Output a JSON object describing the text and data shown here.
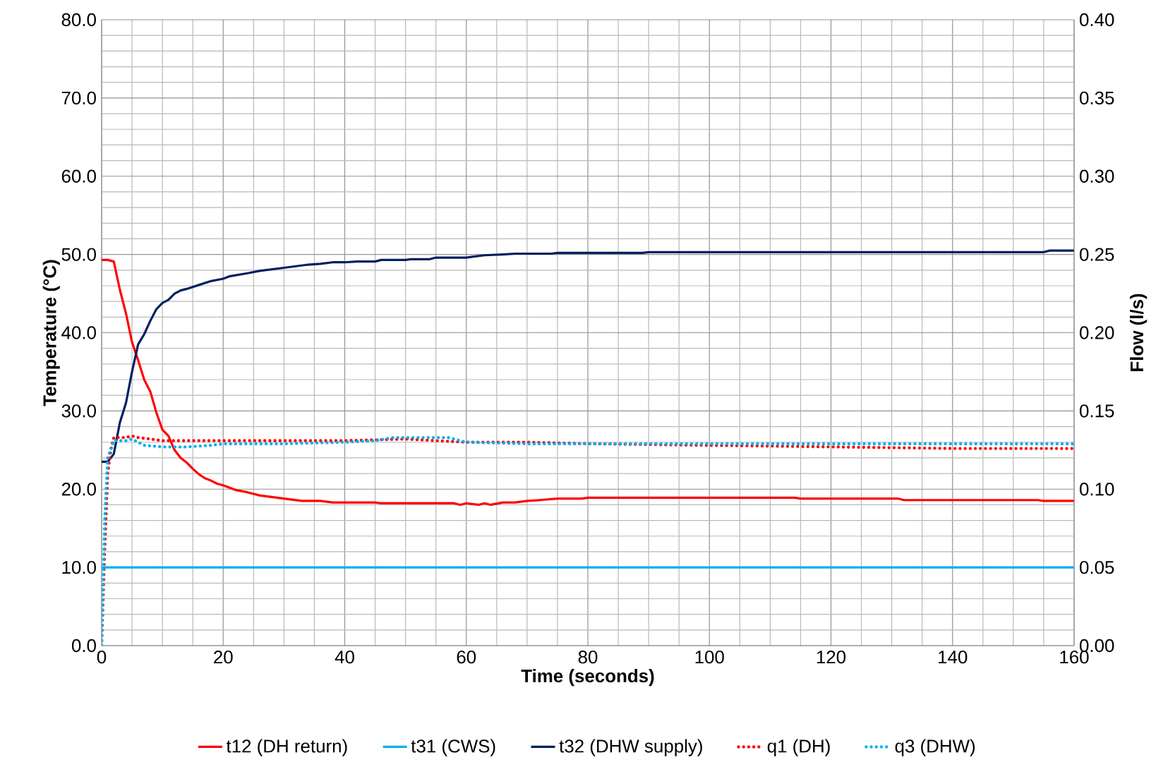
{
  "chart_data": {
    "type": "line",
    "xlabel": "Time (seconds)",
    "ylabel": "Temperature (°C)",
    "y2label": "Flow (l/s)",
    "xlim": [
      0,
      160
    ],
    "xticks": [
      0,
      20,
      40,
      60,
      80,
      100,
      120,
      140,
      160
    ],
    "ylim": [
      0,
      80
    ],
    "yticks": [
      {
        "value": 0,
        "label": "0.0"
      },
      {
        "value": 10,
        "label": "10.0"
      },
      {
        "value": 20,
        "label": "20.0"
      },
      {
        "value": 30,
        "label": "30.0"
      },
      {
        "value": 40,
        "label": "40.0"
      },
      {
        "value": 50,
        "label": "50.0"
      },
      {
        "value": 60,
        "label": "60.0"
      },
      {
        "value": 70,
        "label": "70.0"
      },
      {
        "value": 80,
        "label": "80.0"
      }
    ],
    "y2lim": [
      0,
      0.4
    ],
    "y2ticks": [
      {
        "value": 0,
        "label": "0.00"
      },
      {
        "value": 0.05,
        "label": "0.05"
      },
      {
        "value": 0.1,
        "label": "0.10"
      },
      {
        "value": 0.15,
        "label": "0.15"
      },
      {
        "value": 0.2,
        "label": "0.20"
      },
      {
        "value": 0.25,
        "label": "0.25"
      },
      {
        "value": 0.3,
        "label": "0.30"
      },
      {
        "value": 0.35,
        "label": "0.35"
      },
      {
        "value": 0.4,
        "label": "0.40"
      }
    ],
    "grid": true,
    "legend": "bottom",
    "marker": "none",
    "series": [
      {
        "name": "t12 (DH return)",
        "color": "#ff0000",
        "line_style": "solid",
        "x": [
          0,
          1,
          2,
          3,
          4,
          5,
          6,
          7,
          8,
          9,
          10,
          11,
          12,
          13,
          14,
          15,
          16,
          17,
          18,
          19,
          20,
          22,
          24,
          26,
          28,
          30,
          33,
          36,
          38,
          45,
          46,
          58,
          59,
          60,
          62,
          63,
          64,
          66,
          68,
          70,
          72,
          75,
          79,
          80,
          114,
          115,
          131,
          132,
          154,
          155,
          160
        ],
        "values": [
          49.3,
          49.3,
          49.1,
          45.5,
          42.5,
          38.8,
          36.5,
          34,
          32.5,
          29.8,
          27.6,
          26.8,
          25,
          24,
          23.4,
          22.6,
          21.9,
          21.4,
          21.1,
          20.7,
          20.5,
          19.9,
          19.6,
          19.2,
          19.0,
          18.8,
          18.5,
          18.5,
          18.3,
          18.3,
          18.2,
          18.2,
          18.0,
          18.2,
          18.0,
          18.2,
          18.0,
          18.3,
          18.3,
          18.5,
          18.6,
          18.8,
          18.8,
          18.9,
          18.9,
          18.8,
          18.8,
          18.6,
          18.6,
          18.5,
          18.5
        ]
      },
      {
        "name": "t31 (CWS)",
        "color": "#00b0f0",
        "line_style": "solid",
        "x": [
          0,
          160
        ],
        "values": [
          10.0,
          10.0
        ]
      },
      {
        "name": "t32 (DHW supply)",
        "color": "#002060",
        "line_style": "solid",
        "x": [
          0,
          1,
          2,
          3,
          4,
          5,
          6,
          7,
          8,
          9,
          10,
          11,
          12,
          13,
          14,
          16,
          18,
          20,
          21,
          24,
          26,
          28,
          30,
          32,
          34,
          36,
          38,
          40,
          42,
          45,
          46,
          50,
          51,
          54,
          55,
          60,
          61,
          63,
          66,
          68,
          74,
          75,
          89,
          90,
          155,
          156,
          160
        ],
        "values": [
          23.5,
          23.5,
          24.5,
          28.5,
          31,
          35,
          38.5,
          39.8,
          41.5,
          43,
          43.8,
          44.2,
          45,
          45.4,
          45.6,
          46.1,
          46.6,
          46.9,
          47.2,
          47.6,
          47.9,
          48.1,
          48.3,
          48.5,
          48.7,
          48.8,
          49,
          49,
          49.1,
          49.1,
          49.3,
          49.3,
          49.4,
          49.4,
          49.6,
          49.6,
          49.7,
          49.9,
          50.0,
          50.1,
          50.1,
          50.2,
          50.2,
          50.3,
          50.3,
          50.5,
          50.5
        ]
      },
      {
        "name": "q1 (DH)",
        "color": "#ff0000",
        "line_style": "dotted",
        "axis": "y2",
        "x": [
          0,
          0.5,
          1,
          1.5,
          2,
          4,
          5,
          6,
          8,
          10,
          20,
          30,
          40,
          50,
          55,
          60,
          70,
          80,
          100,
          120,
          140,
          160
        ],
        "values": [
          0.0,
          0.06,
          0.11,
          0.125,
          0.133,
          0.133,
          0.134,
          0.133,
          0.132,
          0.131,
          0.131,
          0.131,
          0.131,
          0.132,
          0.131,
          0.13,
          0.13,
          0.129,
          0.128,
          0.127,
          0.126,
          0.126
        ]
      },
      {
        "name": "q3 (DHW)",
        "color": "#00b0f0",
        "line_style": "dotted",
        "axis": "y2",
        "x": [
          0,
          0.5,
          1,
          2,
          4,
          5,
          6,
          7,
          10,
          14,
          18,
          20,
          30,
          40,
          45,
          48,
          52,
          57,
          60,
          70,
          80,
          100,
          160
        ],
        "values": [
          0.0,
          0.08,
          0.12,
          0.131,
          0.131,
          0.132,
          0.13,
          0.128,
          0.127,
          0.127,
          0.128,
          0.129,
          0.129,
          0.13,
          0.131,
          0.133,
          0.133,
          0.133,
          0.13,
          0.129,
          0.129,
          0.129,
          0.129
        ]
      }
    ]
  }
}
